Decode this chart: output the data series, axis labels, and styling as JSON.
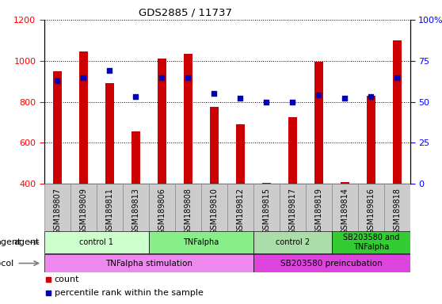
{
  "title": "GDS2885 / 11737",
  "samples": [
    "GSM189807",
    "GSM189809",
    "GSM189811",
    "GSM189813",
    "GSM189806",
    "GSM189808",
    "GSM189810",
    "GSM189812",
    "GSM189815",
    "GSM189817",
    "GSM189819",
    "GSM189814",
    "GSM189816",
    "GSM189818"
  ],
  "counts": [
    950,
    1045,
    890,
    655,
    1010,
    1035,
    775,
    690,
    405,
    725,
    995,
    410,
    830,
    1100
  ],
  "percentiles": [
    63,
    65,
    69,
    53,
    65,
    65,
    55,
    52,
    50,
    50,
    54,
    52,
    53,
    65
  ],
  "bar_color": "#cc0000",
  "dot_color": "#0000bb",
  "ylim_left": [
    400,
    1200
  ],
  "ylim_right": [
    0,
    100
  ],
  "yticks_left": [
    400,
    600,
    800,
    1000,
    1200
  ],
  "yticks_right": [
    0,
    25,
    50,
    75,
    100
  ],
  "agent_groups": [
    {
      "label": "control 1",
      "start": 0,
      "end": 3,
      "color": "#ccffcc"
    },
    {
      "label": "TNFalpha",
      "start": 4,
      "end": 7,
      "color": "#88ee88"
    },
    {
      "label": "control 2",
      "start": 8,
      "end": 10,
      "color": "#aaddaa"
    },
    {
      "label": "SB203580 and\nTNFalpha",
      "start": 11,
      "end": 13,
      "color": "#33cc33"
    }
  ],
  "protocol_groups": [
    {
      "label": "TNFalpha stimulation",
      "start": 0,
      "end": 7,
      "color": "#ee88ee"
    },
    {
      "label": "SB203580 preincubation",
      "start": 8,
      "end": 13,
      "color": "#dd44dd"
    }
  ],
  "legend_items": [
    {
      "color": "#cc0000",
      "label": "count"
    },
    {
      "color": "#0000bb",
      "label": "percentile rank within the sample"
    }
  ],
  "xtick_bg": "#cccccc"
}
